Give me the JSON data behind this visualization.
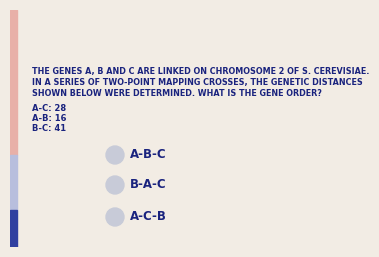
{
  "bg_color": "#f2ece4",
  "stripe1_color": "#e8b0a8",
  "stripe2_color": "#b8bedd",
  "stripe3_color": "#3040a0",
  "question_text_lines": [
    "THE GENES A, B AND C ARE LINKED ON CHROMOSOME 2 OF S. CEREVISIAE.",
    "IN A SERIES OF TWO-POINT MAPPING CROSSES, THE GENETIC DISTANCES",
    "SHOWN BELOW WERE DETERMINED. WHAT IS THE GENE ORDER?"
  ],
  "distances": [
    "A-C: 28",
    "A-B: 16",
    "B-C: 41"
  ],
  "options": [
    "A-B-C",
    "B-A-C",
    "A-C-B"
  ],
  "text_color": "#1a237e",
  "circle_color": "#c8cbd8",
  "question_fontsize": 5.8,
  "distance_fontsize": 6.0,
  "option_fontsize": 8.5
}
